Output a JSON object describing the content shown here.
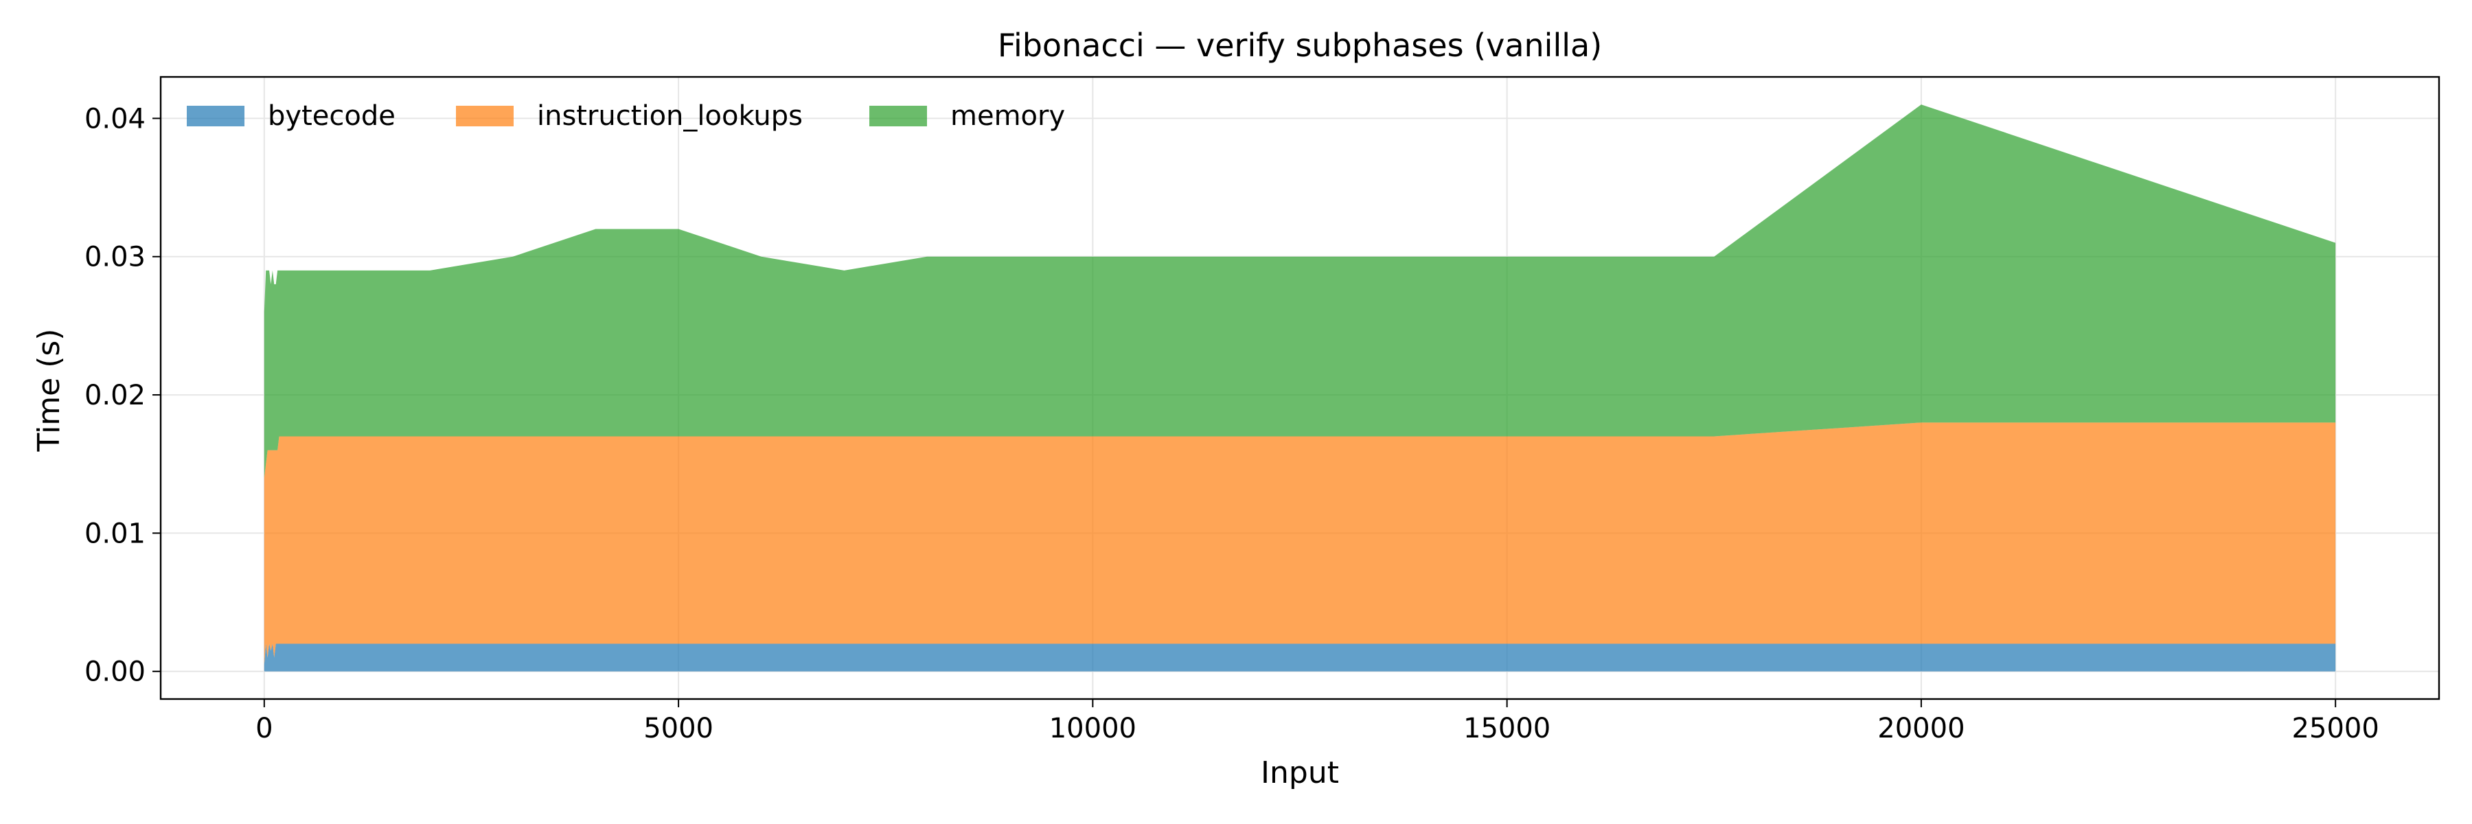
{
  "colors": {
    "bytecode": "#1f77b4",
    "instruction_lookups": "#ff7f0e",
    "memory": "#2ca02c",
    "grid": "#e6e6e6",
    "axis": "#000000"
  },
  "chart_data": {
    "type": "area",
    "stacked": true,
    "title": "Fibonacci — verify subphases (vanilla)",
    "xlabel": "Input",
    "ylabel": "Time (s)",
    "xlim": [
      -1250,
      26250
    ],
    "ylim": [
      -0.002,
      0.043
    ],
    "xticks": [
      0,
      5000,
      10000,
      15000,
      20000,
      25000
    ],
    "xtick_labels": [
      "0",
      "5000",
      "10000",
      "15000",
      "20000",
      "25000"
    ],
    "yticks": [
      0,
      0.01,
      0.02,
      0.03,
      0.04
    ],
    "ytick_labels": [
      "0.00",
      "0.01",
      "0.02",
      "0.03",
      "0.04"
    ],
    "grid": true,
    "legend": {
      "placement": "top-left",
      "columns": 3
    },
    "x": [
      0,
      20,
      40,
      60,
      80,
      100,
      120,
      140,
      160,
      180,
      200,
      300,
      500,
      1000,
      2000,
      3000,
      4000,
      5000,
      6000,
      7000,
      8000,
      9000,
      10000,
      12500,
      15000,
      17500,
      20000,
      25000
    ],
    "series": [
      {
        "name": "bytecode",
        "values": [
          0.0005,
          0.002,
          0.001,
          0.002,
          0.0015,
          0.002,
          0.001,
          0.002,
          0.002,
          0.002,
          0.002,
          0.002,
          0.002,
          0.002,
          0.002,
          0.002,
          0.002,
          0.002,
          0.002,
          0.002,
          0.002,
          0.002,
          0.002,
          0.002,
          0.002,
          0.002,
          0.002,
          0.002
        ]
      },
      {
        "name": "instruction_lookups",
        "values": [
          0.0135,
          0.013,
          0.015,
          0.014,
          0.0145,
          0.014,
          0.015,
          0.014,
          0.014,
          0.015,
          0.015,
          0.015,
          0.015,
          0.015,
          0.015,
          0.015,
          0.015,
          0.015,
          0.015,
          0.015,
          0.015,
          0.015,
          0.015,
          0.015,
          0.015,
          0.015,
          0.016,
          0.016
        ]
      },
      {
        "name": "memory",
        "values": [
          0.012,
          0.014,
          0.013,
          0.013,
          0.012,
          0.013,
          0.012,
          0.012,
          0.013,
          0.012,
          0.012,
          0.012,
          0.012,
          0.012,
          0.012,
          0.013,
          0.015,
          0.015,
          0.013,
          0.012,
          0.013,
          0.013,
          0.013,
          0.013,
          0.013,
          0.013,
          0.023,
          0.013
        ]
      }
    ]
  }
}
